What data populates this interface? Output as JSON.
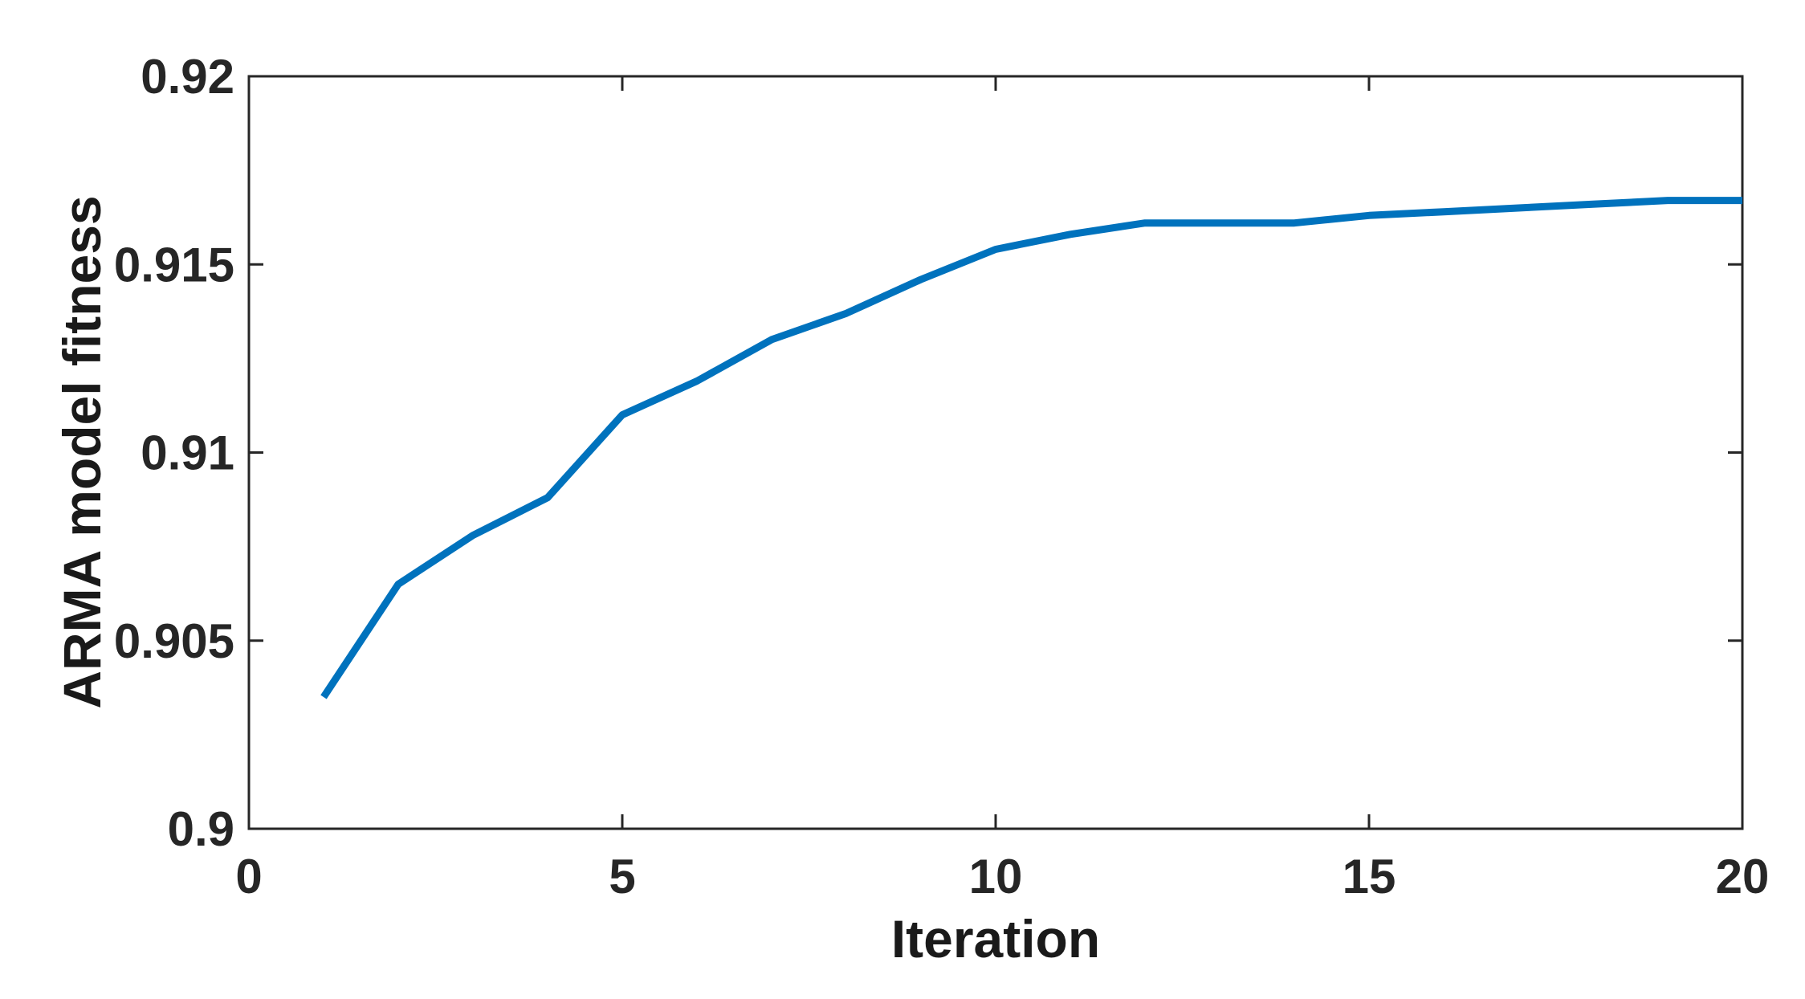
{
  "figure": {
    "background": "#ffffff"
  },
  "chart_data": {
    "type": "line",
    "title": "",
    "xlabel": "Iteration",
    "ylabel": "ARMA model fitness",
    "x": [
      1,
      2,
      3,
      4,
      5,
      6,
      7,
      8,
      9,
      10,
      11,
      12,
      13,
      14,
      15,
      16,
      17,
      18,
      19,
      20
    ],
    "y": [
      0.9035,
      0.9065,
      0.9078,
      0.9088,
      0.911,
      0.9119,
      0.913,
      0.9137,
      0.9146,
      0.9154,
      0.9158,
      0.9161,
      0.9161,
      0.9161,
      0.9163,
      0.9164,
      0.9165,
      0.9166,
      0.9167,
      0.9167
    ],
    "xlim": [
      0,
      20
    ],
    "ylim": [
      0.9,
      0.92
    ],
    "xticks": [
      0,
      5,
      10,
      15,
      20
    ],
    "xtick_labels": [
      "0",
      "5",
      "10",
      "15",
      "20"
    ],
    "yticks": [
      0.9,
      0.905,
      0.91,
      0.915,
      0.92
    ],
    "ytick_labels": [
      "0.9",
      "0.905",
      "0.91",
      "0.915",
      "0.92"
    ],
    "grid": false,
    "legend": null,
    "box": true,
    "line_color": "#0072BD",
    "line_width": 9,
    "axis_color": "#262626",
    "label_color": "#1a1a1a"
  }
}
